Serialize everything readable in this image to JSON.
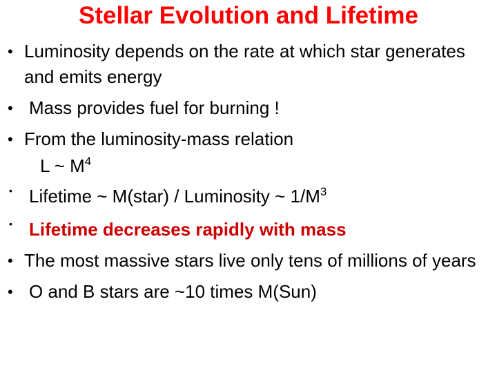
{
  "title": "Stellar Evolution and Lifetime",
  "bullets": [
    {
      "text": "Luminosity depends on the rate at which star generates and emits energy"
    },
    {
      "text": "Mass provides fuel for burning !"
    },
    {
      "text": "From the luminosity-mass relation"
    },
    {
      "text": "L ~ M",
      "sup": "4"
    },
    {
      "text": "Lifetime ~ M(star) / Luminosity ~ 1/M",
      "sup": "3"
    },
    {
      "text": "Lifetime decreases rapidly with mass"
    },
    {
      "text": "The most massive stars live only tens of millions of years"
    },
    {
      "text": "O and B stars are ~10 times M(Sun)"
    }
  ]
}
